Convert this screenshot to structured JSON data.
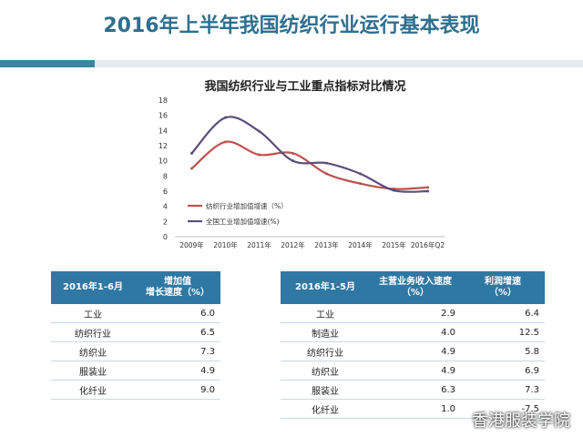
{
  "page_title": "2016年上半年我国纺织行业运行基本表现",
  "chart_data": {
    "type": "line",
    "title": "我国纺织行业与工业重点指标对比情况",
    "categories": [
      "2009年",
      "2010年",
      "2011年",
      "2012年",
      "2013年",
      "2014年",
      "2015年",
      "2016年Q2"
    ],
    "ylim": [
      0,
      18
    ],
    "yticks": [
      0,
      2,
      4,
      6,
      8,
      10,
      12,
      14,
      16,
      18
    ],
    "series": [
      {
        "name": "纺织行业增加值增速（%）",
        "color": "#c0504d",
        "values": [
          9.0,
          12.5,
          10.8,
          11.0,
          8.3,
          7.0,
          6.3,
          6.5
        ]
      },
      {
        "name": "全国工业增加值增速(%)",
        "color": "#5a4f7a",
        "values": [
          11.0,
          15.7,
          13.9,
          10.0,
          9.7,
          8.3,
          6.1,
          6.0
        ]
      }
    ],
    "legend": "inside-left"
  },
  "table1": {
    "headers": [
      "2016年1-6月",
      "增加值\n增长速度（%）"
    ],
    "rows": [
      [
        "工业",
        "6.0"
      ],
      [
        "纺织行业",
        "6.5"
      ],
      [
        "纺织业",
        "7.3"
      ],
      [
        "服装业",
        "4.9"
      ],
      [
        "化纤业",
        "9.0"
      ]
    ]
  },
  "table2": {
    "headers": [
      "2016年1-5月",
      "主营业务收入速度\n（%）",
      "利润增速\n（%）"
    ],
    "rows": [
      [
        "工业",
        "2.9",
        "6.4"
      ],
      [
        "制造业",
        "4.0",
        "12.5"
      ],
      [
        "纺织行业",
        "4.9",
        "5.8"
      ],
      [
        "纺织业",
        "4.9",
        "6.9"
      ],
      [
        "服装业",
        "6.3",
        "7.3"
      ],
      [
        "化纤业",
        "1.0",
        "-7.5"
      ]
    ]
  },
  "watermark": "香港服装学院"
}
